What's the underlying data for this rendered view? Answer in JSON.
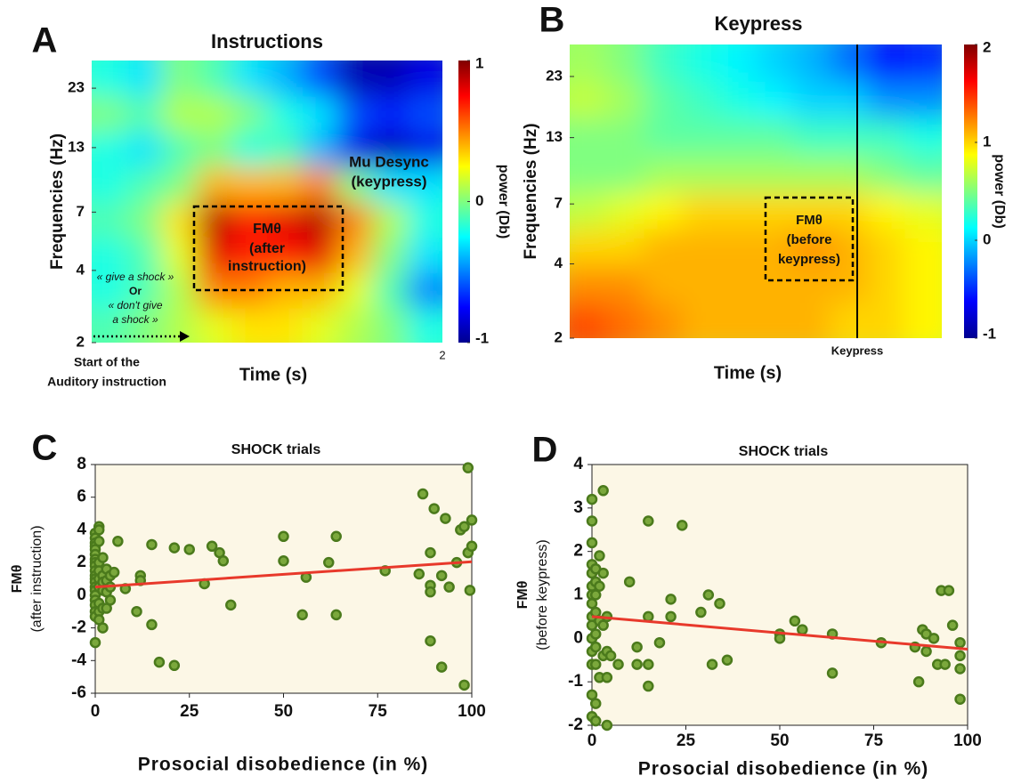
{
  "chart_data": [
    {
      "type": "heatmap",
      "panel": "A",
      "title": "Instructions",
      "xlabel": "Time (s)",
      "ylabel": "Frequencies (Hz)",
      "yscale": "log",
      "ylim": [
        2,
        30
      ],
      "yticks": [
        2,
        4,
        7,
        13,
        23
      ],
      "xlim": [
        0,
        2
      ],
      "xticks": [
        2
      ],
      "colorbar": {
        "label": "power (Db)",
        "lim": [
          -1,
          1
        ],
        "ticks": [
          -1,
          0,
          1
        ]
      },
      "z": [
        [
          -0.1,
          0.0,
          0.1,
          0.2,
          0.3,
          0.3,
          0.2,
          0.1,
          0.0,
          -0.2
        ],
        [
          -0.2,
          -0.1,
          0.1,
          0.5,
          0.5,
          0.4,
          0.4,
          0.2,
          -0.1,
          -0.5
        ],
        [
          -0.2,
          -0.1,
          0.2,
          0.8,
          0.7,
          0.7,
          0.8,
          0.4,
          0.0,
          -0.3
        ],
        [
          -0.1,
          0.0,
          0.3,
          0.9,
          0.7,
          0.8,
          0.9,
          0.5,
          0.1,
          -0.2
        ],
        [
          -0.2,
          -0.1,
          0.0,
          0.4,
          0.4,
          0.4,
          0.5,
          0.0,
          -0.3,
          -0.3
        ],
        [
          -0.2,
          -0.3,
          -0.1,
          0.0,
          -0.2,
          -0.1,
          -0.4,
          -0.8,
          -0.9,
          -0.8
        ],
        [
          0.0,
          -0.1,
          0.1,
          0.1,
          0.0,
          -0.2,
          -0.3,
          -0.6,
          -0.7,
          -0.6
        ],
        [
          -0.2,
          -0.3,
          0.0,
          -0.1,
          -0.3,
          -0.4,
          -0.6,
          -0.9,
          -0.9,
          -0.8
        ]
      ],
      "annotations": [
        [
          "FMθ",
          "(after",
          "instruction)"
        ],
        [
          "Mu Desync",
          "(keypress)"
        ],
        [
          "« give a shock »",
          "Or",
          "« don't give",
          "a shock »"
        ],
        [
          "Start of the",
          "Auditory instruction"
        ]
      ]
    },
    {
      "type": "heatmap",
      "panel": "B",
      "title": "Keypress",
      "xlabel": "Time (s)",
      "ylabel": "Frequencies (Hz)",
      "yscale": "log",
      "ylim": [
        2,
        31
      ],
      "yticks": [
        2,
        4,
        7,
        13,
        23
      ],
      "colorbar": {
        "label": "power (Db)",
        "lim": [
          -1,
          2
        ],
        "ticks": [
          -1,
          0,
          1,
          2
        ]
      },
      "z": [
        [
          1.4,
          1.3,
          1.2,
          1.1,
          1.1,
          1.1,
          1.1,
          1.0,
          1.0,
          0.9
        ],
        [
          1.2,
          1.2,
          1.1,
          1.1,
          1.1,
          1.1,
          1.1,
          1.1,
          1.0,
          0.9
        ],
        [
          1.0,
          1.0,
          1.1,
          1.1,
          1.1,
          1.1,
          1.2,
          1.1,
          1.0,
          0.9
        ],
        [
          0.7,
          0.8,
          0.9,
          1.0,
          1.0,
          1.0,
          1.0,
          1.0,
          0.9,
          0.8
        ],
        [
          0.5,
          0.5,
          0.6,
          0.6,
          0.6,
          0.6,
          0.6,
          0.6,
          0.5,
          0.4
        ],
        [
          0.5,
          0.5,
          0.4,
          0.4,
          0.4,
          0.4,
          0.3,
          0.3,
          0.3,
          0.2
        ],
        [
          0.7,
          0.6,
          0.4,
          0.3,
          0.2,
          0.1,
          0.0,
          0.0,
          -0.2,
          -0.2
        ],
        [
          0.6,
          0.5,
          0.3,
          0.2,
          0.1,
          0.0,
          -0.1,
          -0.3,
          -0.6,
          -0.5
        ]
      ],
      "annotations": [
        [
          "FMθ",
          "(before",
          "keypress)"
        ],
        [
          "Keypress"
        ]
      ]
    },
    {
      "type": "scatter",
      "panel": "C",
      "title": "SHOCK trials",
      "xlabel": "Prosocial disobedience (in %)",
      "ylabel": [
        "FMθ",
        "(after instruction)"
      ],
      "xlim": [
        0,
        100
      ],
      "xticks": [
        0,
        25,
        50,
        75,
        100
      ],
      "ylim": [
        -6,
        8
      ],
      "yticks": [
        -6,
        -4,
        -2,
        0,
        2,
        4,
        6,
        8
      ],
      "color": "#7ba83c",
      "x": [
        0,
        0,
        0,
        0,
        0,
        0,
        0,
        0,
        0,
        0,
        0,
        0,
        0,
        0,
        0,
        0,
        0,
        0,
        0,
        0,
        0,
        1,
        1,
        1,
        1,
        1,
        1,
        1,
        1,
        1,
        1,
        2,
        2,
        2,
        2,
        2,
        2,
        3,
        3,
        3,
        3,
        4,
        4,
        4,
        5,
        6,
        8,
        11,
        12,
        12,
        15,
        15,
        17,
        21,
        21,
        25,
        29,
        31,
        33,
        34,
        36,
        50,
        50,
        55,
        56,
        62,
        64,
        64,
        77,
        86,
        87,
        89,
        89,
        89,
        89,
        90,
        92,
        92,
        93,
        94,
        96,
        97,
        98,
        98,
        99,
        99,
        100,
        100,
        99.5
      ],
      "values": [
        3.8,
        3.5,
        3.2,
        3.0,
        2.8,
        2.5,
        2.2,
        2.0,
        1.8,
        1.5,
        1.2,
        1.0,
        0.8,
        0.5,
        0.3,
        0,
        -0.3,
        -0.6,
        -1.0,
        -1.3,
        -2.9,
        4.2,
        4.0,
        3.3,
        2.0,
        1.5,
        1.0,
        0.5,
        -0.5,
        -1.0,
        -1.5,
        2.3,
        1.2,
        0.8,
        0.3,
        -0.8,
        -2.0,
        1.6,
        0.9,
        0.2,
        -0.8,
        1.2,
        0.5,
        -0.3,
        1.4,
        3.3,
        0.4,
        -1.0,
        1.2,
        0.9,
        3.1,
        -1.8,
        -4.1,
        2.9,
        -4.3,
        2.8,
        0.7,
        3.0,
        2.6,
        2.1,
        -0.6,
        3.6,
        2.1,
        -1.2,
        1.1,
        2.0,
        3.6,
        -1.2,
        1.5,
        1.3,
        6.2,
        2.6,
        0.6,
        0.2,
        -2.8,
        5.3,
        1.2,
        -4.4,
        4.7,
        0.5,
        2.0,
        4.0,
        4.2,
        -5.5,
        7.8,
        2.6,
        4.6,
        3.0,
        0.3
      ],
      "fit": {
        "x": [
          0,
          100
        ],
        "values": [
          0.5,
          2.05
        ],
        "color": "#e8392b"
      }
    },
    {
      "type": "scatter",
      "panel": "D",
      "title": "SHOCK trials",
      "xlabel": "Prosocial disobedience (in %)",
      "ylabel": [
        "FMθ",
        "(before keypress)"
      ],
      "xlim": [
        0,
        100
      ],
      "xticks": [
        0,
        25,
        50,
        75,
        100
      ],
      "ylim": [
        -2,
        4
      ],
      "yticks": [
        -2,
        -1,
        0,
        1,
        2,
        3,
        4
      ],
      "color": "#7ba83c",
      "x": [
        0,
        0,
        0,
        0,
        0,
        0,
        0,
        0,
        0,
        0,
        0,
        0,
        0,
        0,
        0,
        1,
        1,
        1,
        1,
        1,
        1,
        1,
        1,
        1,
        2,
        2,
        2,
        2,
        3,
        3,
        3,
        3,
        4,
        4,
        4,
        4,
        5,
        7,
        10,
        12,
        12,
        15,
        15,
        15,
        15,
        18,
        21,
        21,
        24,
        29,
        31,
        32,
        34,
        36,
        50,
        50,
        54,
        56,
        64,
        64,
        77,
        86,
        87,
        88,
        89,
        89,
        91,
        92,
        93,
        94,
        95,
        96,
        98,
        98,
        98,
        98
      ],
      "values": [
        3.2,
        2.7,
        2.2,
        1.7,
        1.5,
        1.2,
        1.0,
        0.8,
        0.5,
        0.3,
        0,
        -0.3,
        -0.6,
        -1.3,
        -1.8,
        1.6,
        1.3,
        1.0,
        0.6,
        0.1,
        -0.2,
        -0.6,
        -1.5,
        -1.9,
        1.9,
        1.2,
        0.4,
        -0.9,
        3.4,
        1.5,
        0.3,
        -0.4,
        0.5,
        -0.3,
        -0.9,
        -2.0,
        -0.4,
        -0.6,
        1.3,
        -0.2,
        -0.6,
        2.7,
        0.5,
        -0.6,
        -1.1,
        -0.1,
        0.9,
        0.5,
        2.6,
        0.6,
        1.0,
        -0.6,
        0.8,
        -0.5,
        0.1,
        0.0,
        0.4,
        0.2,
        0.1,
        -0.8,
        -0.1,
        -0.2,
        -1.0,
        0.2,
        0.1,
        -0.3,
        0.0,
        -0.6,
        1.1,
        -0.6,
        1.1,
        0.3,
        -0.1,
        -0.4,
        -0.7,
        -1.4
      ],
      "fit": {
        "x": [
          0,
          100
        ],
        "values": [
          0.5,
          -0.25
        ],
        "color": "#e8392b"
      }
    }
  ]
}
